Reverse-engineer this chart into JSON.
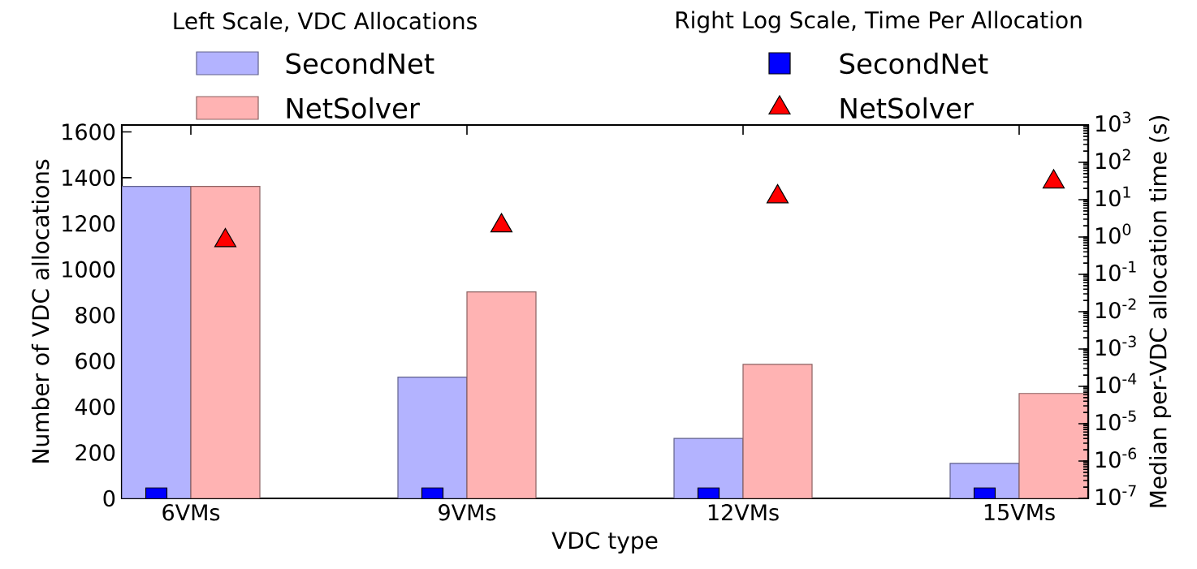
{
  "chart_data": {
    "type": "bar",
    "xlabel": "VDC type",
    "ylabel": "Number of VDC allocations",
    "y2label": "Median per-VDC allocation time (s)",
    "annotations": [
      "Left Scale, VDC Allocations",
      "Right Log Scale, Time Per Allocation"
    ],
    "categories": [
      "6VMs",
      "9VMs",
      "12VMs",
      "15VMs"
    ],
    "series": [
      {
        "name": "SecondNet",
        "color": "#b3b3ff",
        "values": [
          1362,
          529,
          262,
          153
        ]
      },
      {
        "name": "NetSolver",
        "color": "#ffb3b3",
        "values": [
          1362,
          901,
          585,
          458
        ]
      },
      {
        "name": "SecondNet",
        "type": "scatter",
        "axis": "y2",
        "marker": "square",
        "color": "#0000ff",
        "values": [
          1e-07,
          1e-07,
          1e-07,
          1e-07
        ]
      },
      {
        "name": "NetSolver",
        "type": "scatter",
        "axis": "y2",
        "marker": "triangle",
        "color": "#ff0000",
        "values": [
          0.8,
          2,
          12,
          30
        ]
      }
    ],
    "ylim": [
      0,
      1630
    ],
    "yticks": [
      0,
      200,
      400,
      600,
      800,
      1000,
      1200,
      1400,
      1600
    ],
    "y2lim": [
      1e-07,
      1000
    ],
    "y2ticks": [
      {
        "value": 1e-07,
        "label": "10$^{-7}$"
      },
      {
        "value": 1e-06,
        "label": "10$^{-6}$"
      },
      {
        "value": 1e-05,
        "label": "10$^{-5}$"
      },
      {
        "value": 0.0001,
        "label": "10$^{-4}$"
      },
      {
        "value": 0.001,
        "label": "10$^{-3}$"
      },
      {
        "value": 0.01,
        "label": "10$^{-2}$"
      },
      {
        "value": 0.1,
        "label": "10$^{-1}$"
      },
      {
        "value": 1,
        "label": "10$^{0}$"
      },
      {
        "value": 10,
        "label": "10$^{1}$"
      },
      {
        "value": 100,
        "label": "10$^{2}$"
      },
      {
        "value": 1000,
        "label": "10$^{3}$"
      }
    ],
    "log": "y2",
    "legend": "top",
    "grid": false
  }
}
